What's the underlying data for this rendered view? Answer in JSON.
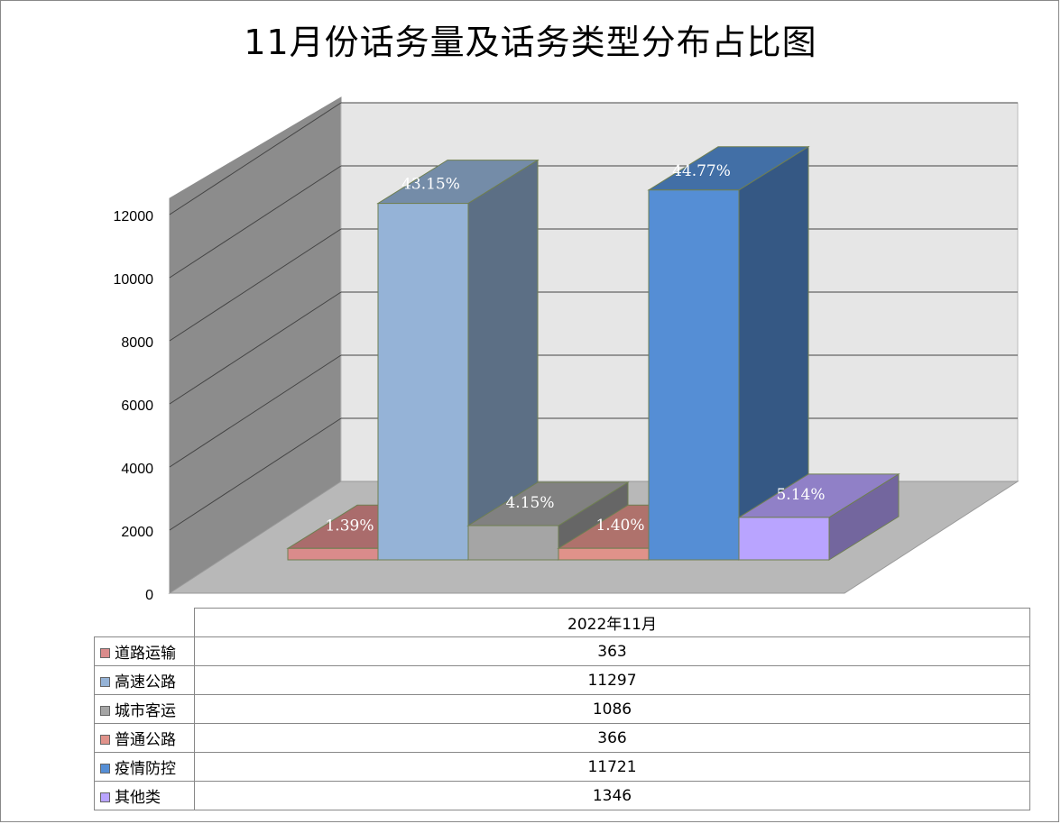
{
  "chart_data": {
    "type": "bar",
    "title": "11月份话务量及话务类型分布占比图",
    "categories": [
      "2022年11月"
    ],
    "series": [
      {
        "name": "道路运输",
        "value": 363,
        "label": "1.39%",
        "color": "#DA8B8B"
      },
      {
        "name": "高速公路",
        "value": 11297,
        "label": "43.15%",
        "color": "#95B3D7"
      },
      {
        "name": "城市客运",
        "value": 1086,
        "label": "4.15%",
        "color": "#A5A5A5"
      },
      {
        "name": "普通公路",
        "value": 366,
        "label": "1.40%",
        "color": "#E0928A"
      },
      {
        "name": "疫情防控",
        "value": 11721,
        "label": "44.77%",
        "color": "#558ED5"
      },
      {
        "name": "其他类",
        "value": 1346,
        "label": "5.14%",
        "color": "#B9A4FF"
      }
    ],
    "y_ticks": [
      "0",
      "2000",
      "4000",
      "6000",
      "8000",
      "10000",
      "12000"
    ],
    "ylim": [
      0,
      12000
    ],
    "grid": true,
    "legend": "data-table-below"
  }
}
